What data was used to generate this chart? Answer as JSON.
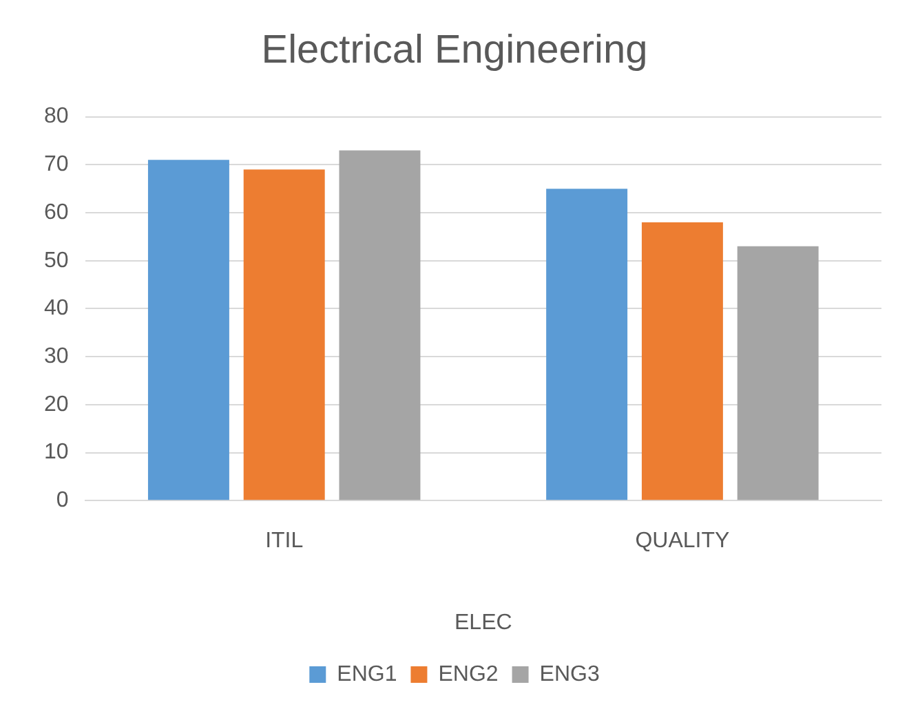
{
  "chart_data": {
    "type": "bar",
    "title": "Electrical Engineering",
    "xlabel": "ELEC",
    "categories": [
      "ITIL",
      "QUALITY"
    ],
    "series": [
      {
        "name": "ENG1",
        "color": "#5b9bd5",
        "values": [
          71,
          65
        ]
      },
      {
        "name": "ENG2",
        "color": "#ed7d31",
        "values": [
          69,
          58
        ]
      },
      {
        "name": "ENG3",
        "color": "#a5a5a5",
        "values": [
          73,
          53
        ]
      }
    ],
    "ylim": [
      0,
      80
    ],
    "yticks": [
      0,
      10,
      20,
      30,
      40,
      50,
      60,
      70,
      80
    ],
    "grid": "y",
    "legend": "bottom"
  }
}
